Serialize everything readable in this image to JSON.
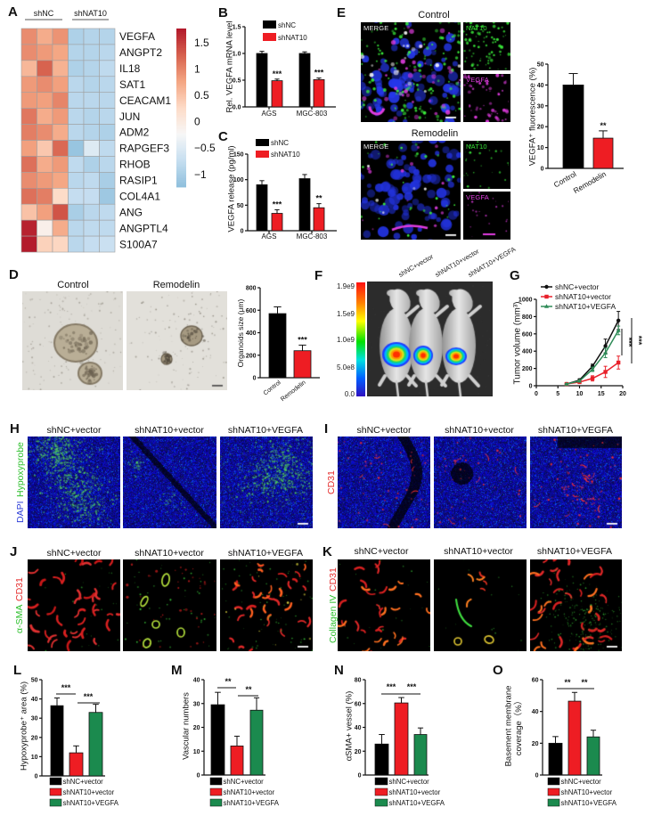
{
  "panel_labels": {
    "A": "A",
    "B": "B",
    "C": "C",
    "D": "D",
    "E": "E",
    "F": "F",
    "G": "G",
    "H": "H",
    "I": "I",
    "J": "J",
    "K": "K",
    "L": "L",
    "M": "M",
    "N": "N",
    "O": "O"
  },
  "colors": {
    "shNC": "#000000",
    "shNAT10": "#ee1d23",
    "shNAT10_VEGFA": "#1b8a4e",
    "DAPI": "#2f3fd8",
    "Hypoxyprobe": "#2fc02f",
    "CD31": "#e52b2b",
    "alpha_SMA": "#2fc02f",
    "Collagen_IV": "#2fc02f",
    "NAT10": "#36e036",
    "VEGFA": "#e040e0"
  },
  "panel_e": {
    "titles": [
      "Control",
      "Remodelin"
    ],
    "channels": {
      "merge": "MERGE",
      "nat10": "NAT10",
      "vegfa": "VEGFA"
    }
  },
  "panel_d": {
    "titles": [
      "Control",
      "Remodelin"
    ]
  },
  "panel_f": {
    "colorbar_labels": [
      "1.9e9",
      "1.5e9",
      "1.0e9",
      "5.0e8",
      "0.0"
    ],
    "group_labels": [
      "shNC+vector",
      "shNAT10+vector",
      "shNAT10+VEGFA"
    ]
  },
  "panel_h": {
    "titles": [
      "shNC+vector",
      "shNAT10+vector",
      "shNAT10+VEGFA"
    ],
    "ylabel": [
      "DAPI",
      "Hypoxyprobe"
    ]
  },
  "panel_i": {
    "titles": [
      "shNC+vector",
      "shNAT10+vector",
      "shNAT10+VEGFA"
    ],
    "ylabel": [
      "CD31"
    ]
  },
  "panel_j": {
    "titles": [
      "shNC+vector",
      "shNAT10+vector",
      "shNAT10+VEGFA"
    ],
    "ylabel": [
      "α-SMA",
      "CD31"
    ]
  },
  "panel_k": {
    "titles": [
      "shNC+vector",
      "shNAT10+vector",
      "shNAT10+VEGFA"
    ],
    "ylabel": [
      "Collagen IV",
      "CD31"
    ]
  },
  "chart_data": [
    {
      "id": "A",
      "type": "heatmap",
      "title": "",
      "column_groups": [
        {
          "label": "shNC",
          "count": 3
        },
        {
          "label": "shNAT10",
          "count": 3
        }
      ],
      "rows": [
        "VEGFA",
        "ANGPT2",
        "IL18",
        "SAT1",
        "CEACAM1",
        "JUN",
        "ADM2",
        "RAPGEF3",
        "RHOB",
        "RASIP1",
        "COL4A1",
        "ANG",
        "ANGPTL4",
        "S100A7"
      ],
      "values": [
        [
          0.95,
          0.7,
          0.9,
          -0.95,
          -0.9,
          -0.9
        ],
        [
          0.95,
          0.85,
          0.75,
          -0.9,
          -0.9,
          -0.85
        ],
        [
          0.6,
          1.25,
          0.65,
          -0.95,
          -0.9,
          -0.8
        ],
        [
          0.85,
          0.95,
          0.8,
          -0.85,
          -0.9,
          -0.85
        ],
        [
          0.85,
          0.8,
          1.0,
          -0.85,
          -0.85,
          -0.85
        ],
        [
          1.1,
          0.7,
          0.85,
          -0.85,
          -0.9,
          -0.85
        ],
        [
          1.05,
          0.95,
          0.7,
          -0.85,
          -0.9,
          -0.95
        ],
        [
          0.8,
          0.45,
          1.2,
          -1.15,
          -0.5,
          -0.8
        ],
        [
          1.15,
          0.7,
          0.85,
          -0.8,
          -0.95,
          -0.85
        ],
        [
          0.95,
          0.85,
          0.75,
          -0.85,
          -0.8,
          -1.0
        ],
        [
          1.15,
          1.05,
          0.25,
          -0.75,
          -0.75,
          -1.1
        ],
        [
          0.5,
          0.8,
          1.35,
          -1.0,
          -0.85,
          -0.8
        ],
        [
          1.7,
          -0.1,
          0.7,
          -0.85,
          -0.8,
          -0.8
        ],
        [
          1.75,
          0.35,
          0.3,
          -0.85,
          -0.75,
          -0.7
        ]
      ],
      "colorbar": {
        "range": [
          -1.24,
          1.77
        ],
        "ticks": [
          1.5,
          1,
          0.5,
          0,
          -0.5,
          -1
        ],
        "tick_labels": [
          "1.5",
          "1",
          "0.5",
          "0",
          "−0.5",
          "−1"
        ],
        "colors": [
          "#8ebfdc",
          "#c6def0",
          "#f7f7f7",
          "#fddbc7",
          "#f4a582",
          "#d6604d",
          "#b2182b"
        ]
      }
    },
    {
      "id": "B",
      "type": "bar",
      "title": "",
      "categories": [
        "AGS",
        "MGC-803"
      ],
      "series": [
        {
          "name": "shNC",
          "color": "#000000",
          "values": [
            1.0,
            1.0
          ],
          "errors": [
            0.04,
            0.03
          ]
        },
        {
          "name": "shNAT10",
          "color": "#ee1d23",
          "values": [
            0.49,
            0.51
          ],
          "errors": [
            0.03,
            0.03
          ]
        }
      ],
      "xlabel": "",
      "ylabel": "Rel. VEGFA mRNA level",
      "ylim": [
        0,
        1.5
      ],
      "yticks": [
        0,
        0.5,
        1,
        1.5
      ],
      "ytick_labels": [
        "0.0",
        "0.5",
        "1.0",
        "1.5"
      ],
      "significance": [
        {
          "category": 0,
          "series": 1,
          "text": "***"
        },
        {
          "category": 1,
          "series": 1,
          "text": "***"
        }
      ],
      "legend_position": "top",
      "grid": false
    },
    {
      "id": "C",
      "type": "bar",
      "title": "",
      "categories": [
        "AGS",
        "MGC-803"
      ],
      "series": [
        {
          "name": "shNC",
          "color": "#000000",
          "values": [
            90,
            102
          ],
          "errors": [
            8,
            8
          ]
        },
        {
          "name": "shNAT10",
          "color": "#ee1d23",
          "values": [
            34,
            45
          ],
          "errors": [
            7,
            8
          ]
        }
      ],
      "xlabel": "",
      "ylabel": "VEGFA release (pg/ml)",
      "ylim": [
        0,
        150
      ],
      "yticks": [
        0,
        50,
        100,
        150
      ],
      "ytick_labels": [
        "0",
        "50",
        "100",
        "150"
      ],
      "significance": [
        {
          "category": 0,
          "series": 1,
          "text": "***"
        },
        {
          "category": 1,
          "series": 1,
          "text": "**"
        }
      ],
      "legend_position": "top",
      "grid": false
    },
    {
      "id": "E",
      "type": "bar",
      "title": "",
      "categories": [
        "Control",
        "Remodelin"
      ],
      "values": [
        40,
        14.5
      ],
      "errors": [
        5.5,
        3.5
      ],
      "colors": [
        "#000000",
        "#ee1d23"
      ],
      "xlabel": "",
      "ylabel": "VEGFA⁺ fluorescence (%)",
      "ylim": [
        0,
        50
      ],
      "yticks": [
        0,
        10,
        20,
        30,
        40,
        50
      ],
      "ytick_labels": [
        "0",
        "10",
        "20",
        "30",
        "40",
        "50"
      ],
      "significance": [
        {
          "bar": 1,
          "text": "**"
        }
      ],
      "grid": false
    },
    {
      "id": "D",
      "type": "bar",
      "title": "",
      "categories": [
        "Control",
        "Remodelin"
      ],
      "values": [
        570,
        240
      ],
      "errors": [
        60,
        50
      ],
      "colors": [
        "#000000",
        "#ee1d23"
      ],
      "xlabel": "",
      "ylabel": "Organoids size (μm)",
      "ylim": [
        0,
        800
      ],
      "yticks": [
        0,
        200,
        400,
        600,
        800
      ],
      "ytick_labels": [
        "0",
        "200",
        "400",
        "600",
        "800"
      ],
      "significance": [
        {
          "bar": 1,
          "text": "***"
        }
      ],
      "grid": false
    },
    {
      "id": "G",
      "type": "line",
      "title": "",
      "x": [
        7,
        10,
        13,
        16,
        19
      ],
      "series": [
        {
          "name": "shNC+vector",
          "color": "#111111",
          "marker": "circle",
          "values": [
            20,
            65,
            225,
            460,
            755
          ],
          "errors": [
            8,
            15,
            25,
            80,
            105
          ]
        },
        {
          "name": "shNAT10+vector",
          "color": "#e8202a",
          "marker": "square",
          "values": [
            20,
            42,
            85,
            160,
            268
          ],
          "errors": [
            6,
            10,
            30,
            65,
            75
          ]
        },
        {
          "name": "shNAT10+VEGFA",
          "color": "#2e8b57",
          "marker": "triangle",
          "values": [
            20,
            55,
            190,
            380,
            640
          ],
          "errors": [
            6,
            12,
            25,
            55,
            50
          ]
        }
      ],
      "xlabel": "",
      "ylabel": "Tumor volume (mm³)",
      "xlim": [
        0,
        20
      ],
      "xticks": [
        0,
        5,
        10,
        15,
        20
      ],
      "ylim": [
        0,
        1000
      ],
      "yticks": [
        0,
        200,
        400,
        600,
        800,
        1000
      ],
      "ytick_labels": [
        "0",
        "200",
        "400",
        "600",
        "800",
        "1000"
      ],
      "significance": [
        {
          "text": "***",
          "between": [
            "shNAT10+vector",
            "shNAT10+VEGFA"
          ]
        },
        {
          "text": "***",
          "between": [
            "shNC+vector",
            "shNAT10+vector"
          ]
        }
      ],
      "legend_position": "top-left",
      "grid": false
    },
    {
      "id": "L",
      "type": "bar",
      "title": "",
      "categories": [
        "shNC+vector",
        "shNAT10+vector",
        "shNAT10+VEGFA"
      ],
      "values": [
        36.5,
        12,
        33
      ],
      "errors": [
        4,
        3.6,
        4.2
      ],
      "colors": [
        "#000000",
        "#ee1d23",
        "#1b8a4e"
      ],
      "xlabel": "",
      "ylabel": "Hypoxyprobe⁺ area (%)",
      "ylim": [
        0,
        50
      ],
      "yticks": [
        0,
        10,
        20,
        30,
        40,
        50
      ],
      "ytick_labels": [
        "0",
        "10",
        "20",
        "30",
        "40",
        "50"
      ],
      "significance": [
        {
          "from": 0,
          "to": 1,
          "text": "***"
        },
        {
          "from": 1,
          "to": 2,
          "text": "***"
        }
      ],
      "legend_position": "bottom",
      "grid": false
    },
    {
      "id": "M",
      "type": "bar",
      "title": "",
      "categories": [
        "shNC+vector",
        "shNAT10+vector",
        "shNAT10+VEGFA"
      ],
      "values": [
        29.5,
        12.2,
        27.2
      ],
      "errors": [
        5.2,
        4.1,
        5.2
      ],
      "colors": [
        "#000000",
        "#ee1d23",
        "#1b8a4e"
      ],
      "xlabel": "",
      "ylabel": "Vascular numbers",
      "ylim": [
        0,
        40
      ],
      "yticks": [
        0,
        10,
        20,
        30,
        40
      ],
      "ytick_labels": [
        "0",
        "10",
        "20",
        "30",
        "40"
      ],
      "significance": [
        {
          "from": 0,
          "to": 1,
          "text": "**"
        },
        {
          "from": 1,
          "to": 2,
          "text": "**"
        }
      ],
      "legend_position": "bottom",
      "grid": false
    },
    {
      "id": "N",
      "type": "bar",
      "title": "",
      "categories": [
        "shNC+vector",
        "shNAT10+vector",
        "shNAT10+VEGFA"
      ],
      "values": [
        26,
        60.5,
        34
      ],
      "errors": [
        8,
        4.5,
        5.5
      ],
      "colors": [
        "#000000",
        "#ee1d23",
        "#1b8a4e"
      ],
      "xlabel": "",
      "ylabel": "αSMA+ vessel (%)",
      "ylim": [
        0,
        80
      ],
      "yticks": [
        0,
        20,
        40,
        60,
        80
      ],
      "ytick_labels": [
        "0",
        "20",
        "40",
        "60",
        "80"
      ],
      "significance": [
        {
          "from": 0,
          "to": 1,
          "text": "***"
        },
        {
          "from": 1,
          "to": 2,
          "text": "***"
        }
      ],
      "legend_position": "bottom",
      "grid": false
    },
    {
      "id": "O",
      "type": "bar",
      "title": "",
      "categories": [
        "shNC+vector",
        "shNAT10+vector",
        "shNAT10+VEGFA"
      ],
      "values": [
        20,
        46.5,
        24
      ],
      "errors": [
        4.2,
        5.5,
        4.2
      ],
      "colors": [
        "#000000",
        "#ee1d23",
        "#1b8a4e"
      ],
      "xlabel": "",
      "ylabel": [
        "Basement membrane",
        "coverage（%）"
      ],
      "ylim": [
        0,
        60
      ],
      "yticks": [
        0,
        20,
        40,
        60
      ],
      "ytick_labels": [
        "0",
        "20",
        "40",
        "60"
      ],
      "significance": [
        {
          "from": 0,
          "to": 1,
          "text": "**"
        },
        {
          "from": 1,
          "to": 2,
          "text": "**"
        }
      ],
      "legend_position": "bottom",
      "grid": false
    }
  ]
}
